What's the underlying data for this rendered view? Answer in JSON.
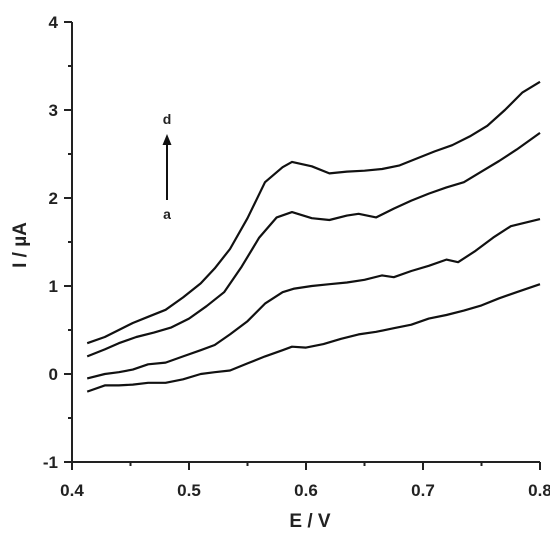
{
  "chart_data": {
    "type": "line",
    "xlabel": "E / V",
    "ylabel": "I / µA",
    "xlim": [
      0.4,
      0.8
    ],
    "ylim": [
      -1,
      4
    ],
    "xticks": [
      "0.4",
      "0.5",
      "0.6",
      "0.7",
      "0.8"
    ],
    "yticks": [
      "-1",
      "0",
      "1",
      "2",
      "3",
      "4"
    ],
    "grid": false,
    "annotations": {
      "start_label": "a",
      "end_label": "d"
    },
    "series": [
      {
        "x": [
          0.413,
          0.428,
          0.44,
          0.452,
          0.465,
          0.48,
          0.495,
          0.51,
          0.522,
          0.535,
          0.55,
          0.565,
          0.58,
          0.588,
          0.6,
          0.615,
          0.63,
          0.645,
          0.66,
          0.675,
          0.69,
          0.705,
          0.72,
          0.735,
          0.75,
          0.765,
          0.78,
          0.8
        ],
        "y": [
          -0.2,
          -0.13,
          -0.13,
          -0.12,
          -0.1,
          -0.1,
          -0.06,
          0.0,
          0.02,
          0.04,
          0.12,
          0.2,
          0.27,
          0.31,
          0.3,
          0.34,
          0.4,
          0.45,
          0.48,
          0.52,
          0.56,
          0.63,
          0.67,
          0.72,
          0.78,
          0.86,
          0.93,
          1.02
        ]
      },
      {
        "x": [
          0.413,
          0.428,
          0.44,
          0.452,
          0.465,
          0.48,
          0.495,
          0.51,
          0.522,
          0.535,
          0.55,
          0.565,
          0.58,
          0.59,
          0.605,
          0.62,
          0.635,
          0.65,
          0.665,
          0.675,
          0.69,
          0.705,
          0.72,
          0.73,
          0.745,
          0.76,
          0.775,
          0.8
        ],
        "y": [
          -0.05,
          0.0,
          0.02,
          0.05,
          0.11,
          0.13,
          0.2,
          0.27,
          0.33,
          0.45,
          0.6,
          0.8,
          0.93,
          0.97,
          1.0,
          1.02,
          1.04,
          1.07,
          1.12,
          1.1,
          1.17,
          1.23,
          1.3,
          1.27,
          1.4,
          1.55,
          1.68,
          1.76
        ]
      },
      {
        "x": [
          0.413,
          0.428,
          0.44,
          0.455,
          0.47,
          0.485,
          0.5,
          0.515,
          0.53,
          0.545,
          0.56,
          0.575,
          0.588,
          0.605,
          0.62,
          0.635,
          0.645,
          0.66,
          0.675,
          0.69,
          0.705,
          0.72,
          0.735,
          0.75,
          0.765,
          0.78,
          0.8
        ],
        "y": [
          0.2,
          0.28,
          0.35,
          0.42,
          0.47,
          0.53,
          0.63,
          0.77,
          0.93,
          1.22,
          1.55,
          1.78,
          1.84,
          1.77,
          1.75,
          1.8,
          1.82,
          1.78,
          1.88,
          1.97,
          2.05,
          2.12,
          2.18,
          2.3,
          2.42,
          2.55,
          2.74
        ]
      },
      {
        "x": [
          0.413,
          0.428,
          0.44,
          0.452,
          0.465,
          0.48,
          0.495,
          0.51,
          0.522,
          0.535,
          0.55,
          0.565,
          0.58,
          0.588,
          0.605,
          0.62,
          0.635,
          0.65,
          0.665,
          0.68,
          0.695,
          0.71,
          0.725,
          0.74,
          0.755,
          0.77,
          0.785,
          0.8
        ],
        "y": [
          0.35,
          0.42,
          0.5,
          0.58,
          0.65,
          0.73,
          0.87,
          1.03,
          1.2,
          1.42,
          1.77,
          2.18,
          2.35,
          2.41,
          2.36,
          2.28,
          2.3,
          2.31,
          2.33,
          2.37,
          2.45,
          2.53,
          2.6,
          2.7,
          2.82,
          3.0,
          3.2,
          3.32
        ]
      }
    ]
  }
}
